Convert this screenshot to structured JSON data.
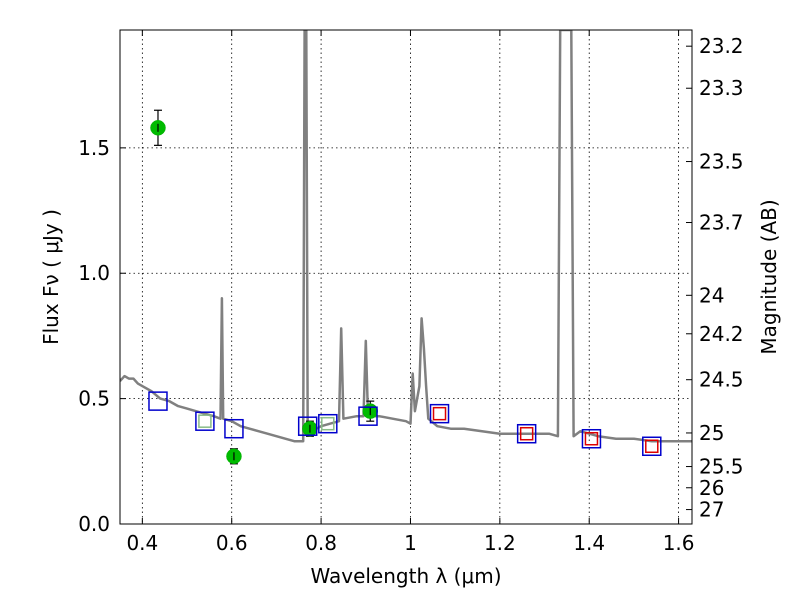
{
  "chart_data": {
    "type": "scatter",
    "xlabel": "Wavelength  λ (μm)",
    "ylabel": "Flux  Fν  ( μJy )",
    "ylabel2": "Magnitude (AB)",
    "xlim": [
      0.35,
      1.63
    ],
    "ylim": [
      0.0,
      1.97
    ],
    "grid": true,
    "x_ticks": [
      {
        "value": 0.4,
        "label": "0.4"
      },
      {
        "value": 0.6,
        "label": "0.6"
      },
      {
        "value": 0.8,
        "label": "0.8"
      },
      {
        "value": 1.0,
        "label": "1"
      },
      {
        "value": 1.2,
        "label": "1.2"
      },
      {
        "value": 1.4,
        "label": "1.4"
      },
      {
        "value": 1.6,
        "label": "1.6"
      }
    ],
    "y_ticks": [
      {
        "value": 0.0,
        "label": "0.0"
      },
      {
        "value": 0.5,
        "label": "0.5"
      },
      {
        "value": 1.0,
        "label": "1.0"
      },
      {
        "value": 1.5,
        "label": "1.5"
      }
    ],
    "mag_ticks": [
      {
        "mag": 23.2,
        "label": "23.2"
      },
      {
        "mag": 23.3,
        "label": "23.3"
      },
      {
        "mag": 23.5,
        "label": "23.5"
      },
      {
        "mag": 23.7,
        "label": "23.7"
      },
      {
        "mag": 24.0,
        "label": "24"
      },
      {
        "mag": 24.2,
        "label": "24.2"
      },
      {
        "mag": 24.5,
        "label": "24.5"
      },
      {
        "mag": 25.0,
        "label": "25"
      },
      {
        "mag": 25.5,
        "label": "25.5"
      },
      {
        "mag": 26.0,
        "label": "26"
      },
      {
        "mag": 27.0,
        "label": "27"
      }
    ],
    "series": [
      {
        "type": "line",
        "color": "#808080",
        "points": [
          [
            0.35,
            0.57
          ],
          [
            0.36,
            0.59
          ],
          [
            0.37,
            0.58
          ],
          [
            0.38,
            0.58
          ],
          [
            0.39,
            0.56
          ],
          [
            0.4,
            0.55
          ],
          [
            0.42,
            0.53
          ],
          [
            0.44,
            0.5
          ],
          [
            0.46,
            0.49
          ],
          [
            0.48,
            0.47
          ],
          [
            0.5,
            0.46
          ],
          [
            0.52,
            0.45
          ],
          [
            0.54,
            0.44
          ],
          [
            0.56,
            0.43
          ],
          [
            0.575,
            0.42
          ],
          [
            0.578,
            0.9
          ],
          [
            0.581,
            0.42
          ],
          [
            0.6,
            0.41
          ],
          [
            0.62,
            0.39
          ],
          [
            0.64,
            0.38
          ],
          [
            0.66,
            0.37
          ],
          [
            0.68,
            0.36
          ],
          [
            0.7,
            0.35
          ],
          [
            0.72,
            0.34
          ],
          [
            0.74,
            0.33
          ],
          [
            0.76,
            0.33
          ],
          [
            0.763,
            1.97
          ],
          [
            0.767,
            1.97
          ],
          [
            0.77,
            0.36
          ],
          [
            0.8,
            0.39
          ],
          [
            0.82,
            0.4
          ],
          [
            0.84,
            0.41
          ],
          [
            0.845,
            0.78
          ],
          [
            0.85,
            0.42
          ],
          [
            0.88,
            0.43
          ],
          [
            0.895,
            0.43
          ],
          [
            0.9,
            0.73
          ],
          [
            0.905,
            0.43
          ],
          [
            0.93,
            0.43
          ],
          [
            0.96,
            0.42
          ],
          [
            0.99,
            0.41
          ],
          [
            1.0,
            0.4
          ],
          [
            1.005,
            0.6
          ],
          [
            1.01,
            0.45
          ],
          [
            1.02,
            0.55
          ],
          [
            1.025,
            0.82
          ],
          [
            1.03,
            0.7
          ],
          [
            1.035,
            0.55
          ],
          [
            1.04,
            0.42
          ],
          [
            1.06,
            0.39
          ],
          [
            1.09,
            0.38
          ],
          [
            1.12,
            0.38
          ],
          [
            1.16,
            0.37
          ],
          [
            1.2,
            0.36
          ],
          [
            1.24,
            0.36
          ],
          [
            1.28,
            0.36
          ],
          [
            1.31,
            0.36
          ],
          [
            1.33,
            0.35
          ],
          [
            1.335,
            1.97
          ],
          [
            1.36,
            1.97
          ],
          [
            1.365,
            0.35
          ],
          [
            1.38,
            0.37
          ],
          [
            1.42,
            0.35
          ],
          [
            1.46,
            0.34
          ],
          [
            1.5,
            0.34
          ],
          [
            1.54,
            0.33
          ],
          [
            1.58,
            0.33
          ],
          [
            1.63,
            0.33
          ]
        ]
      },
      {
        "type": "scatter",
        "color": "#00bb00",
        "points": [
          {
            "x": 0.435,
            "y": 1.58,
            "yerr": 0.07
          },
          {
            "x": 0.605,
            "y": 0.27,
            "yerr": 0.03
          },
          {
            "x": 0.775,
            "y": 0.38,
            "yerr": 0.03
          },
          {
            "x": 0.91,
            "y": 0.45,
            "yerr": 0.04
          }
        ]
      },
      {
        "type": "scatter",
        "marker": "square",
        "color": "#0000cc",
        "points": [
          {
            "x": 0.435,
            "y": 0.49
          },
          {
            "x": 0.54,
            "y": 0.41
          },
          {
            "x": 0.605,
            "y": 0.38
          },
          {
            "x": 0.77,
            "y": 0.39
          },
          {
            "x": 0.815,
            "y": 0.4
          },
          {
            "x": 0.905,
            "y": 0.43
          },
          {
            "x": 1.065,
            "y": 0.44
          },
          {
            "x": 1.26,
            "y": 0.36
          },
          {
            "x": 1.405,
            "y": 0.34
          },
          {
            "x": 1.54,
            "y": 0.31
          }
        ]
      },
      {
        "type": "scatter",
        "marker": "square",
        "color": "#dd0000",
        "points": [
          {
            "x": 1.065,
            "y": 0.44
          },
          {
            "x": 1.26,
            "y": 0.36
          },
          {
            "x": 1.405,
            "y": 0.34
          },
          {
            "x": 1.54,
            "y": 0.31
          }
        ]
      },
      {
        "type": "scatter",
        "marker": "square",
        "color": "#88bb88",
        "points": [
          {
            "x": 0.54,
            "y": 0.41
          },
          {
            "x": 0.815,
            "y": 0.4
          }
        ]
      }
    ]
  }
}
